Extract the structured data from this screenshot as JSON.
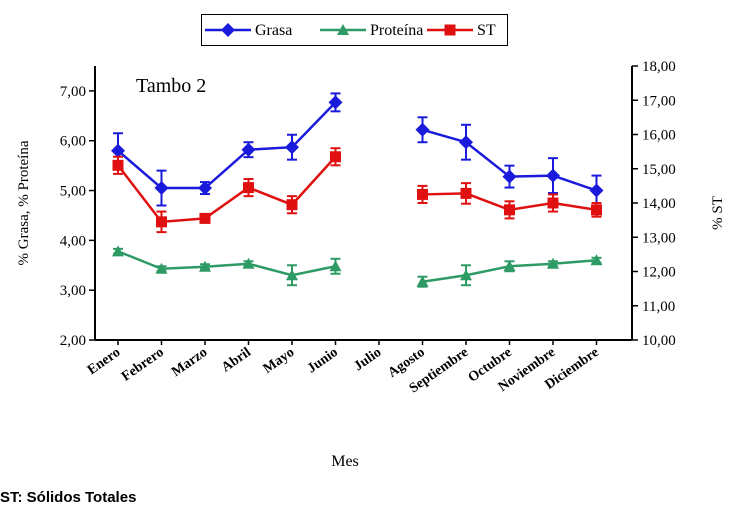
{
  "chart_data": {
    "type": "line",
    "annotation": "Tambo 2",
    "xlabel": "Mes",
    "ylabel_left": "% Grasa, % Proteína",
    "ylabel_right": "% ST",
    "categories": [
      "Enero",
      "Febrero",
      "Marzo",
      "Abril",
      "Mayo",
      "Junio",
      "Julio",
      "Agosto",
      "Septiembre",
      "Octubre",
      "Noviembre",
      "Diciembre"
    ],
    "y_left": {
      "min": 2,
      "max": 7.5,
      "ticks": [
        "2,00",
        "3,00",
        "4,00",
        "5,00",
        "6,00",
        "7,00"
      ]
    },
    "y_right": {
      "min": 10,
      "max": 18,
      "ticks": [
        "10,00",
        "11,00",
        "12,00",
        "13,00",
        "14,00",
        "15,00",
        "16,00",
        "17,00",
        "18,00"
      ]
    },
    "grid": false,
    "legend_position": "top",
    "series": [
      {
        "name": "Grasa",
        "axis": "left",
        "color": "#1a1adc",
        "marker": "diamond",
        "values": [
          5.8,
          5.05,
          5.05,
          5.82,
          5.87,
          6.77,
          null,
          6.22,
          5.97,
          5.28,
          5.3,
          5.0
        ],
        "errors": [
          0.35,
          0.35,
          0.12,
          0.15,
          0.25,
          0.18,
          null,
          0.25,
          0.35,
          0.22,
          0.35,
          0.3
        ]
      },
      {
        "name": "Proteína",
        "axis": "left",
        "color": "#2e9b64",
        "marker": "triangle",
        "values": [
          3.78,
          3.43,
          3.47,
          3.53,
          3.3,
          3.48,
          null,
          3.17,
          3.3,
          3.48,
          3.53,
          3.6
        ],
        "errors": [
          0.05,
          0.05,
          0.05,
          0.05,
          0.2,
          0.15,
          null,
          0.1,
          0.2,
          0.1,
          0.05,
          0.05
        ]
      },
      {
        "name": "ST",
        "axis": "right",
        "color": "#e01010",
        "marker": "square",
        "values": [
          15.1,
          13.45,
          13.55,
          14.45,
          13.95,
          15.35,
          null,
          14.25,
          14.28,
          13.8,
          14.0,
          13.8
        ],
        "errors": [
          0.25,
          0.3,
          0.05,
          0.25,
          0.25,
          0.25,
          null,
          0.25,
          0.3,
          0.25,
          0.25,
          0.2
        ]
      }
    ]
  },
  "footnote": "ST: Sólidos Totales"
}
